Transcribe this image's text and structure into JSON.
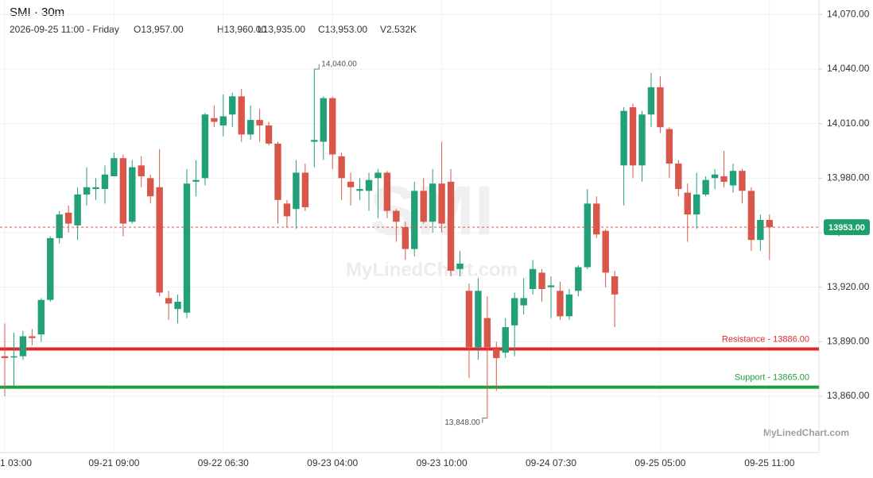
{
  "chart_data": {
    "type": "candlestick",
    "title": "SMI · 30m",
    "header": {
      "date": "2026-09-25 11:00 - Friday",
      "ohlcv": [
        "O13,957.00",
        "H13,960.00",
        "L13,935.00",
        "C13,953.00",
        "V2.532K"
      ]
    },
    "watermark": {
      "symbol": "SMI",
      "site": "MyLinedChart.com"
    },
    "categories": [
      "1 03:00",
      null,
      null,
      null,
      null,
      null,
      null,
      null,
      null,
      null,
      null,
      null,
      "09-21 09:00",
      null,
      null,
      null,
      null,
      null,
      null,
      null,
      null,
      null,
      null,
      null,
      "09-22 06:30",
      null,
      null,
      null,
      null,
      null,
      null,
      null,
      null,
      null,
      null,
      null,
      "09-23 04:00",
      null,
      null,
      null,
      null,
      null,
      null,
      null,
      null,
      null,
      null,
      null,
      "09-23 10:00",
      null,
      null,
      null,
      null,
      null,
      null,
      null,
      null,
      null,
      null,
      null,
      "09-24 07:30",
      null,
      null,
      null,
      null,
      null,
      null,
      null,
      null,
      null,
      null,
      null,
      "09-25 05:00",
      null,
      null,
      null,
      null,
      null,
      null,
      null,
      null,
      null,
      null,
      null,
      "09-25 11:00"
    ],
    "open": [
      13882,
      13882,
      13882,
      13893,
      13894,
      13913,
      13947,
      13961,
      13954,
      13971,
      13974,
      13974,
      13981,
      13991,
      13956,
      13987,
      13980,
      13975,
      13914,
      13908,
      13906,
      13978,
      13980,
      14013,
      14009,
      14015,
      14025,
      14004,
      14012,
      14009,
      13999,
      13966,
      13963,
      13983,
      14000,
      14000,
      14024,
      13992,
      13978,
      13973,
      13973,
      13980,
      13983,
      13962,
      13953,
      13941,
      13973,
      13956,
      13977,
      13978,
      13930,
      13918,
      13887,
      13903,
      13886,
      13884,
      13899,
      13910,
      13919,
      13928,
      13920,
      13918,
      13904,
      13918,
      13931,
      13966,
      13951,
      13926,
      13987,
      14019,
      13987,
      14015,
      14030,
      14007,
      13988,
      13972,
      13960,
      13971,
      13980,
      13981,
      13976,
      13984,
      13973,
      13946,
      13957
    ],
    "high": [
      13900,
      13895,
      13896,
      13897,
      13914,
      13948,
      13962,
      13965,
      13975,
      13986,
      13980,
      13987,
      13994,
      13993,
      13990,
      13992,
      13982,
      13996,
      13918,
      13916,
      13985,
      13990,
      14016,
      14020,
      14026,
      14027,
      14029,
      14020,
      14018,
      14011,
      14000,
      13968,
      13990,
      13988,
      14040,
      14025,
      14025,
      13994,
      13983,
      13980,
      13983,
      13985,
      13984,
      13963,
      13956,
      13978,
      13980,
      13985,
      14000,
      13985,
      13940,
      13922,
      13925,
      13915,
      13890,
      13903,
      13917,
      13925,
      13935,
      13930,
      13926,
      13923,
      13919,
      13932,
      13974,
      13970,
      13952,
      13929,
      14019,
      14021,
      14017,
      14038,
      14036,
      14008,
      13990,
      13977,
      13983,
      13981,
      13985,
      13995,
      13988,
      13985,
      13975,
      13960,
      13960
    ],
    "low": [
      13860,
      13865,
      13880,
      13888,
      13890,
      13912,
      13944,
      13950,
      13946,
      13965,
      13968,
      13966,
      13981,
      13948,
      13955,
      13975,
      13966,
      13915,
      13902,
      13900,
      13903,
      13970,
      13976,
      14008,
      14003,
      14008,
      14000,
      14001,
      14000,
      13998,
      13955,
      13953,
      13952,
      13962,
      13986,
      13990,
      13985,
      13968,
      13965,
      13968,
      13962,
      13958,
      13958,
      13945,
      13935,
      13937,
      13955,
      13950,
      13950,
      13926,
      13926,
      13870,
      13880,
      13848,
      13863,
      13881,
      13882,
      13905,
      13916,
      13912,
      13903,
      13902,
      13902,
      13915,
      13930,
      13947,
      13920,
      13898,
      13965,
      13980,
      13978,
      14008,
      14005,
      13980,
      13970,
      13945,
      13952,
      13970,
      13974,
      13975,
      13972,
      13966,
      13940,
      13940,
      13935
    ],
    "close": [
      13881,
      13882,
      13893,
      13892,
      13913,
      13947,
      13960,
      13955,
      13971,
      13975,
      13975,
      13982,
      13991,
      13955,
      13986,
      13981,
      13970,
      13917,
      13911,
      13912,
      13977,
      13979,
      14015,
      14011,
      14014,
      14025,
      14004,
      14012,
      14009,
      13999,
      13968,
      13959,
      13983,
      13964,
      14001,
      14024,
      13993,
      13980,
      13975,
      13974,
      13979,
      13983,
      13962,
      13956,
      13941,
      13973,
      13956,
      13977,
      13955,
      13929,
      13933,
      13887,
      13918,
      13887,
      13881,
      13898,
      13914,
      13914,
      13930,
      13919,
      13921,
      13904,
      13916,
      13931,
      13966,
      13949,
      13928,
      13916,
      14017,
      13987,
      14015,
      14030,
      14008,
      13988,
      13974,
      13960,
      13971,
      13979,
      13982,
      13978,
      13984,
      13973,
      13946,
      13957,
      13953
    ],
    "up_color": "#22a079",
    "down_color": "#d9574a",
    "ylim": [
      13829,
      14078
    ],
    "yticks": [
      {
        "value": 13860,
        "label": "13,860.00"
      },
      {
        "value": 13890,
        "label": "13,890.00"
      },
      {
        "value": 13920,
        "label": "13,920.00"
      },
      {
        "value": 13950,
        "label": "13,950.00"
      },
      {
        "value": 13980,
        "label": "13,980.00"
      },
      {
        "value": 14010,
        "label": "14,010.00"
      },
      {
        "value": 14040,
        "label": "14,040.00"
      },
      {
        "value": 14070,
        "label": "14,070.00"
      }
    ],
    "grid": true,
    "levels": [
      {
        "label": "Resistance - 13886.00",
        "value": 13886,
        "color": "#e02a2a"
      },
      {
        "label": "Support - 13865.00",
        "value": 13865,
        "color": "#1f9e3a"
      }
    ],
    "last_price": {
      "value": 13953,
      "label": "13953.00",
      "color": "#1e9e6a"
    },
    "annotations": [
      {
        "label": "14,040.00",
        "value": 14040
      },
      {
        "label": "13,848.00",
        "value": 13848
      }
    ]
  }
}
